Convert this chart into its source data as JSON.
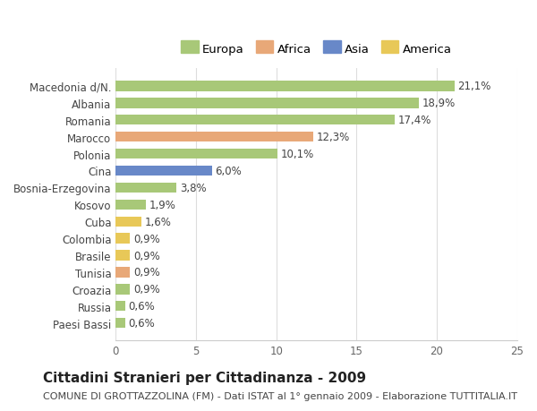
{
  "categories": [
    "Paesi Bassi",
    "Russia",
    "Croazia",
    "Tunisia",
    "Brasile",
    "Colombia",
    "Cuba",
    "Kosovo",
    "Bosnia-Erzegovina",
    "Cina",
    "Polonia",
    "Marocco",
    "Romania",
    "Albania",
    "Macedonia d/N."
  ],
  "values": [
    0.6,
    0.6,
    0.9,
    0.9,
    0.9,
    0.9,
    1.6,
    1.9,
    3.8,
    6.0,
    10.1,
    12.3,
    17.4,
    18.9,
    21.1
  ],
  "labels": [
    "0,6%",
    "0,6%",
    "0,9%",
    "0,9%",
    "0,9%",
    "0,9%",
    "1,6%",
    "1,9%",
    "3,8%",
    "6,0%",
    "10,1%",
    "12,3%",
    "17,4%",
    "18,9%",
    "21,1%"
  ],
  "colors": [
    "#a8c878",
    "#a8c878",
    "#a8c878",
    "#e8a878",
    "#e8c858",
    "#e8c858",
    "#e8c858",
    "#a8c878",
    "#a8c878",
    "#6888c8",
    "#a8c878",
    "#e8a878",
    "#a8c878",
    "#a8c878",
    "#a8c878"
  ],
  "continent_colors": {
    "Europa": "#a8c878",
    "Africa": "#e8a878",
    "Asia": "#6888c8",
    "America": "#e8c858"
  },
  "title": "Cittadini Stranieri per Cittadinanza - 2009",
  "subtitle": "COMUNE DI GROTTAZZOLINA (FM) - Dati ISTAT al 1° gennaio 2009 - Elaborazione TUTTITALIA.IT",
  "xlim": [
    0,
    25
  ],
  "xticks": [
    0,
    5,
    10,
    15,
    20,
    25
  ],
  "bg_color": "#ffffff",
  "grid_color": "#dddddd",
  "bar_height": 0.6,
  "title_fontsize": 11,
  "subtitle_fontsize": 8,
  "label_fontsize": 8.5,
  "tick_fontsize": 8.5
}
